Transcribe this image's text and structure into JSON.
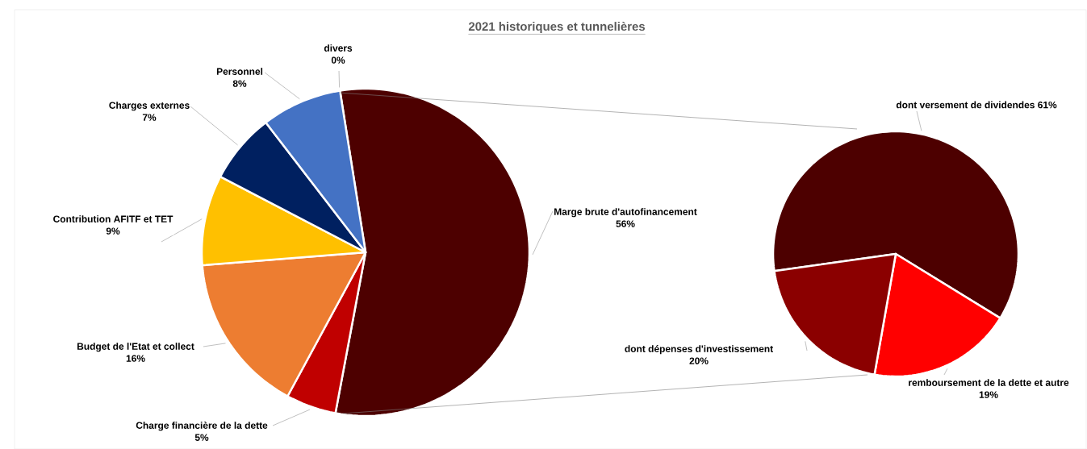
{
  "chart_data": [
    {
      "type": "pie",
      "title": "2021 historiques et tunnelières",
      "categories": [
        "Marge brute d'autofinancement",
        "Charge financière de la dette",
        "Budget de l'Etat et collect",
        "Contribution AFITF et TET",
        "Charges externes",
        "Personnel",
        "divers"
      ],
      "values": [
        56,
        5,
        16,
        9,
        7,
        8,
        0
      ],
      "value_labels": [
        "56%",
        "5%",
        "16%",
        "9%",
        "7%",
        "8%",
        "0%"
      ],
      "colors": [
        "#4d0000",
        "#c00000",
        "#ed7d31",
        "#ffc000",
        "#002060",
        "#4472c4",
        "#a5a5a5"
      ]
    },
    {
      "type": "pie",
      "categories": [
        "dont versement de dividendes",
        "remboursement de la dette et autre",
        "dont dépenses d'investissement"
      ],
      "values": [
        61,
        19,
        20
      ],
      "value_labels": [
        "61%",
        "19%",
        "20%"
      ],
      "colors": [
        "#4d0000",
        "#ff0000",
        "#8b0000"
      ]
    }
  ]
}
